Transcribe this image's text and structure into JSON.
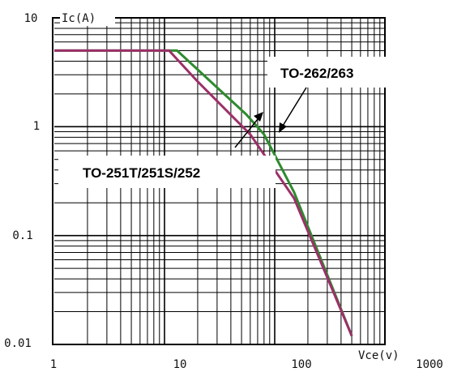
{
  "chart_data": {
    "type": "line",
    "title": "",
    "xlabel": "Vce(v)",
    "ylabel": "Ic(A)",
    "x_scale": "log",
    "y_scale": "log",
    "xlim": [
      1,
      1000
    ],
    "ylim": [
      0.01,
      10
    ],
    "grid": true,
    "x_ticks": [
      "1",
      "10",
      "100",
      "1000"
    ],
    "y_ticks": [
      "10",
      "1",
      "0.1",
      "0.01"
    ],
    "series": [
      {
        "name": "TO-262/263",
        "color": "#2e8b2e",
        "points": [
          [
            1,
            5
          ],
          [
            13,
            5
          ],
          [
            55,
            1.3
          ],
          [
            80,
            0.85
          ],
          [
            150,
            0.25
          ],
          [
            500,
            0.012
          ]
        ]
      },
      {
        "name": "TO-251T/251S/252",
        "color": "#9c3068",
        "points": [
          [
            1,
            5
          ],
          [
            11,
            5
          ],
          [
            20,
            2.6
          ],
          [
            60,
            0.85
          ],
          [
            150,
            0.22
          ],
          [
            500,
            0.012
          ]
        ]
      }
    ],
    "annotations": [
      {
        "text": "TO-262/263",
        "series": "TO-262/263"
      },
      {
        "text": "TO-251T/251S/252",
        "series": "TO-251T/251S/252"
      }
    ]
  }
}
